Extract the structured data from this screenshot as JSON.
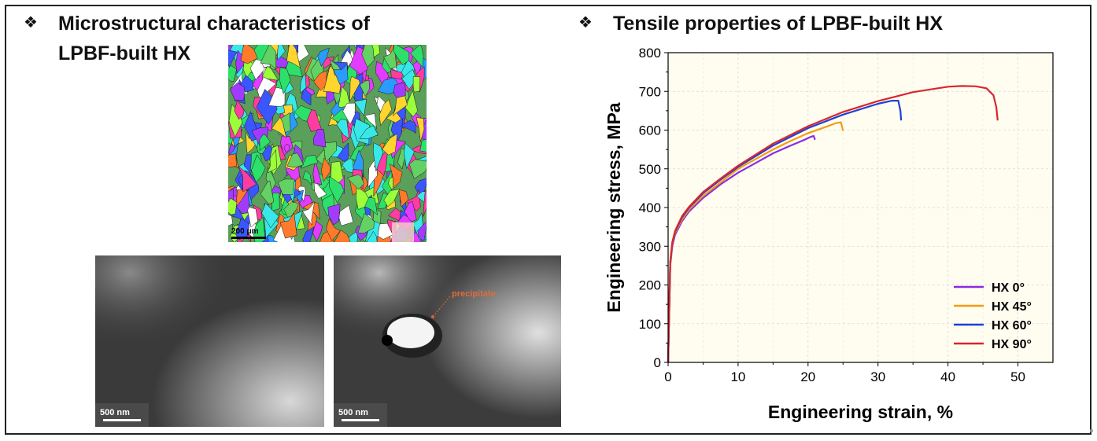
{
  "left_panel": {
    "bullet": "❖",
    "heading_line1": "Microstructural characteristics of",
    "heading_line2": "LPBF-built HX",
    "ebsd_scale": "200 μm",
    "sem_left_scale": "500 nm",
    "sem_right_scale": "500 nm",
    "sem_right_annotation": "precipitate"
  },
  "right_panel": {
    "bullet": "❖",
    "heading": "Tensile properties of LPBF-built HX"
  },
  "chart_data": {
    "type": "line",
    "xlabel": "Engineering strain, %",
    "ylabel": "Engineering stress, MPa",
    "xlim": [
      0,
      55
    ],
    "ylim": [
      0,
      800
    ],
    "xticks": [
      0,
      10,
      20,
      30,
      40,
      50
    ],
    "yticks": [
      0,
      100,
      200,
      300,
      400,
      500,
      600,
      700,
      800
    ],
    "grid": true,
    "legend_position": "bottom-right",
    "series": [
      {
        "name": "HX 0°",
        "color": "#8a2be2",
        "x": [
          0,
          0.3,
          0.6,
          1,
          2,
          3,
          5,
          7.5,
          10,
          12.5,
          15,
          17.5,
          19.5,
          20.3,
          20.8,
          21.0
        ],
        "y": [
          0,
          250,
          300,
          330,
          365,
          390,
          425,
          460,
          490,
          515,
          540,
          560,
          575,
          582,
          585,
          575
        ]
      },
      {
        "name": "HX 45°",
        "color": "#f39c12",
        "x": [
          0,
          0.3,
          0.6,
          1,
          2,
          3,
          5,
          7.5,
          10,
          12.5,
          15,
          17.5,
          20,
          22.5,
          24,
          24.7,
          25.0
        ],
        "y": [
          0,
          255,
          305,
          335,
          370,
          395,
          430,
          465,
          500,
          525,
          550,
          572,
          592,
          608,
          618,
          620,
          598
        ]
      },
      {
        "name": "HX 60°",
        "color": "#1f3fd6",
        "x": [
          0,
          0.3,
          0.6,
          1,
          2,
          3,
          5,
          7.5,
          10,
          15,
          20,
          25,
          30,
          32,
          32.9,
          33.2,
          33.3
        ],
        "y": [
          0,
          258,
          308,
          338,
          375,
          400,
          437,
          472,
          505,
          560,
          605,
          640,
          668,
          676,
          676,
          650,
          625
        ]
      },
      {
        "name": "HX 90°",
        "color": "#d9262c",
        "x": [
          0,
          0.3,
          0.6,
          1,
          2,
          3,
          5,
          7.5,
          10,
          15,
          20,
          25,
          30,
          35,
          40,
          42,
          44,
          45.5,
          46.5,
          46.9,
          47.1
        ],
        "y": [
          0,
          260,
          310,
          340,
          378,
          402,
          440,
          475,
          508,
          565,
          610,
          647,
          675,
          698,
          712,
          714,
          713,
          708,
          690,
          660,
          625
        ]
      }
    ]
  }
}
